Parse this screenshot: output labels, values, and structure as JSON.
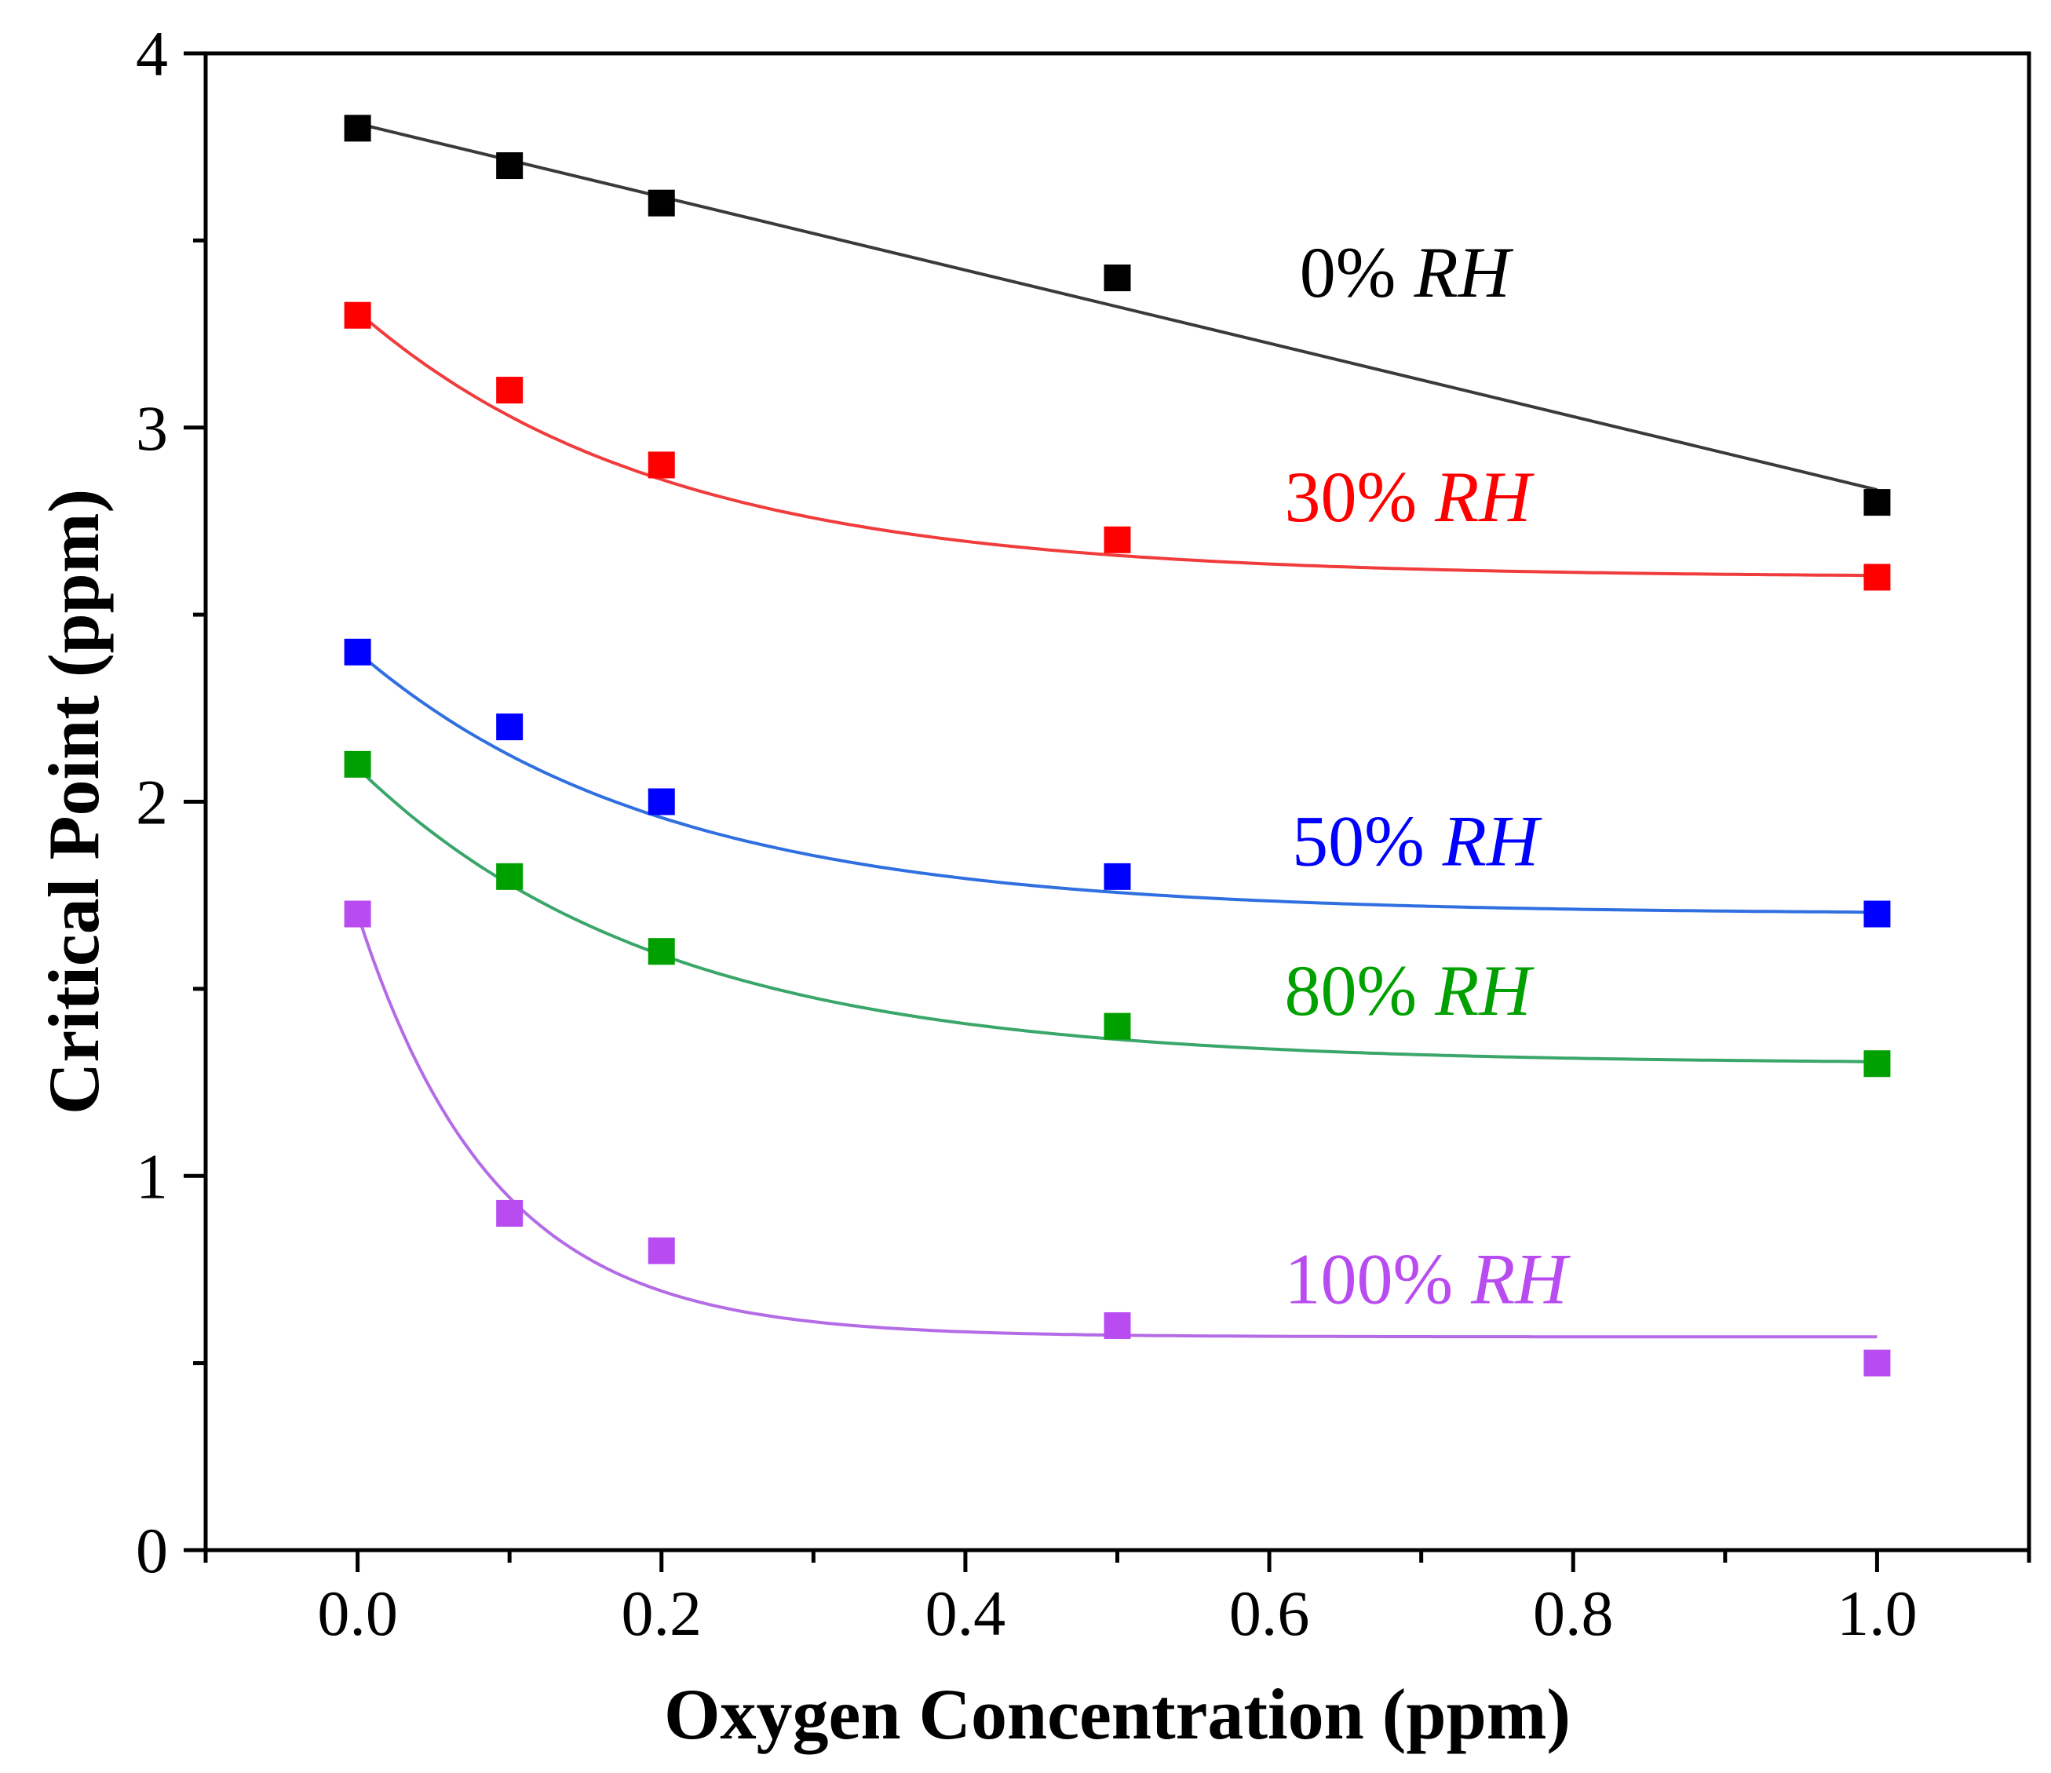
{
  "chart_data": {
    "type": "scatter",
    "xlabel": "Oxygen Concentration (ppm)",
    "ylabel": "Critical Point (ppm)",
    "xlim": [
      -0.1,
      1.1
    ],
    "ylim": [
      0,
      4
    ],
    "x_ticks": [
      {
        "value": 0.0,
        "label": "0.0"
      },
      {
        "value": 0.2,
        "label": "0.2"
      },
      {
        "value": 0.4,
        "label": "0.4"
      },
      {
        "value": 0.6,
        "label": "0.6"
      },
      {
        "value": 0.8,
        "label": "0.8"
      },
      {
        "value": 1.0,
        "label": "1.0"
      }
    ],
    "x_minor_ticks": [
      -0.1,
      0.1,
      0.3,
      0.5,
      0.7,
      0.9,
      1.1
    ],
    "y_ticks": [
      {
        "value": 0,
        "label": "0"
      },
      {
        "value": 1,
        "label": "1"
      },
      {
        "value": 2,
        "label": "2"
      },
      {
        "value": 3,
        "label": "3"
      },
      {
        "value": 4,
        "label": "4"
      }
    ],
    "y_minor_ticks": [
      0.5,
      1.5,
      2.5,
      3.5
    ],
    "grid": false,
    "series": [
      {
        "name": "0% RH",
        "label_prefix": "0%",
        "label_suffix": "RH",
        "color": "#000000",
        "line_color": "#3a3a3a",
        "fit": "linear",
        "x": [
          0.0,
          0.1,
          0.2,
          0.5,
          1.0
        ],
        "y": [
          3.8,
          3.7,
          3.6,
          3.4,
          2.8
        ],
        "label_at": [
          0.62,
          3.35
        ]
      },
      {
        "name": "30% RH",
        "label_prefix": "30%",
        "label_suffix": "RH",
        "color": "#ff0000",
        "line_color": "#f03c3c",
        "fit": "exponential",
        "fit_params": {
          "y0": 2.6,
          "A": 0.71,
          "t": 0.2
        },
        "x": [
          0.0,
          0.1,
          0.2,
          0.5,
          1.0
        ],
        "y": [
          3.3,
          3.1,
          2.9,
          2.7,
          2.6
        ],
        "label_at": [
          0.61,
          2.75
        ]
      },
      {
        "name": "50% RH",
        "label_prefix": "50%",
        "label_suffix": "RH",
        "color": "#0000ff",
        "line_color": "#2f6fe0",
        "fit": "exponential",
        "fit_params": {
          "y0": 1.7,
          "A": 0.7,
          "t": 0.2
        },
        "x": [
          0.0,
          0.1,
          0.2,
          0.5,
          1.0
        ],
        "y": [
          2.4,
          2.2,
          2.0,
          1.8,
          1.7
        ],
        "label_at": [
          0.615,
          1.83
        ]
      },
      {
        "name": "80% RH",
        "label_prefix": "80%",
        "label_suffix": "RH",
        "color": "#00a000",
        "line_color": "#3aa66a",
        "fit": "exponential",
        "fit_params": {
          "y0": 1.3,
          "A": 0.79,
          "t": 0.2
        },
        "x": [
          0.0,
          0.1,
          0.2,
          0.5,
          1.0
        ],
        "y": [
          2.1,
          1.8,
          1.6,
          1.4,
          1.3
        ],
        "label_at": [
          0.61,
          1.43
        ]
      },
      {
        "name": "100% RH",
        "label_prefix": "100%",
        "label_suffix": "RH",
        "color": "#b84cf0",
        "line_color": "#b36be6",
        "fit": "exponential",
        "fit_params": {
          "y0": 0.57,
          "A": 1.13,
          "t": 0.09
        },
        "x": [
          0.0,
          0.1,
          0.2,
          0.5,
          1.0
        ],
        "y": [
          1.7,
          0.9,
          0.8,
          0.6,
          0.5
        ],
        "label_at": [
          0.61,
          0.66
        ]
      }
    ]
  }
}
